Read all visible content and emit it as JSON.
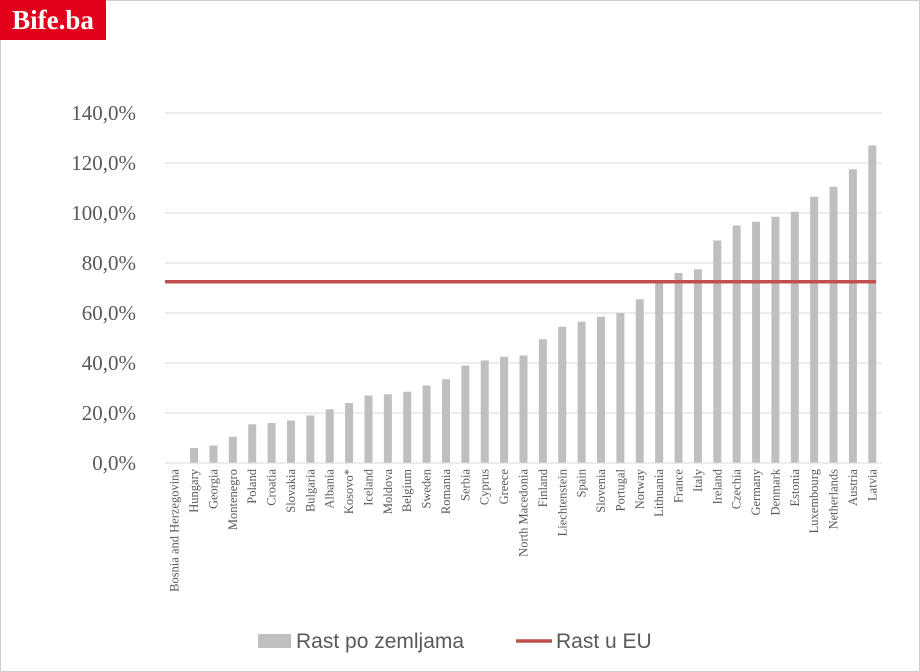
{
  "brand": {
    "logo_text": "Bife.ba",
    "logo_color": "#e3001b"
  },
  "chart_data": {
    "type": "bar",
    "title": "",
    "xlabel": "",
    "ylabel": "",
    "ylim": [
      0,
      140
    ],
    "yticks": [
      0,
      20,
      40,
      60,
      80,
      100,
      120,
      140
    ],
    "ytick_labels": [
      "0,0%",
      "20,0%",
      "40,0%",
      "60,0%",
      "80,0%",
      "100,0%",
      "120,0%",
      "140,0%"
    ],
    "grid": true,
    "legend_position": "bottom",
    "categories": [
      "Bosnia and Herzegovina",
      "Hungary",
      "Georgia",
      "Montenegro",
      "Poland",
      "Croatia",
      "Slovakia",
      "Bulgaria",
      "Albania",
      "Kosovo*",
      "Iceland",
      "Moldova",
      "Belgium",
      "Sweden",
      "Romania",
      "Serbia",
      "Cyprus",
      "Greece",
      "North Macedonia",
      "Finland",
      "Liechtenstein",
      "Spain",
      "Slovenia",
      "Portugal",
      "Norway",
      "Lithuania",
      "France",
      "Italy",
      "Ireland",
      "Czechia",
      "Germany",
      "Denmark",
      "Estonia",
      "Luxembourg",
      "Netherlands",
      "Austria",
      "Latvia"
    ],
    "series": [
      {
        "name": "Rast po zemljama",
        "kind": "bar",
        "color": "#bfbfbf",
        "values": [
          0,
          6,
          7,
          10.5,
          15.5,
          16,
          17,
          19,
          21.5,
          24,
          27,
          27.5,
          28.5,
          31,
          33.5,
          39,
          41,
          42.5,
          43,
          49.5,
          54.5,
          56.5,
          58.5,
          60,
          65.5,
          72,
          76,
          77.5,
          89,
          95,
          96.5,
          98.5,
          100.5,
          106.5,
          110.5,
          117.5,
          127
        ]
      },
      {
        "name": "Rast u EU",
        "kind": "line",
        "color": "#c0504d",
        "value": 72.5
      }
    ]
  }
}
